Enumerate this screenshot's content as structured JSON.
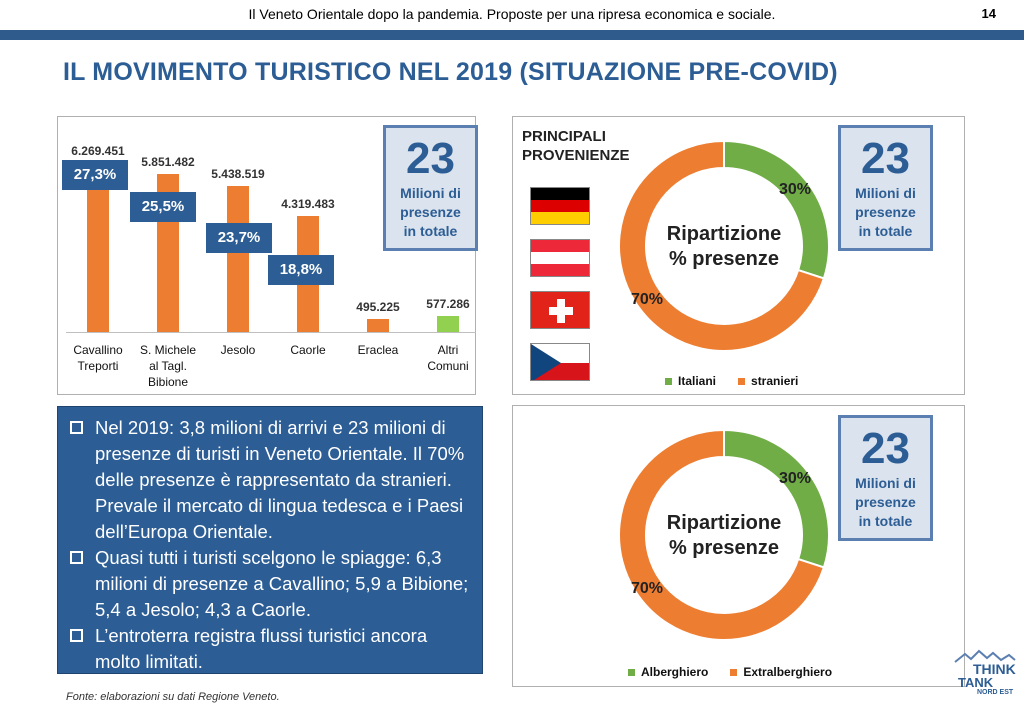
{
  "header": {
    "text": "Il Veneto Orientale dopo la pandemia. Proposte per una ripresa economica e sociale.",
    "page_number": "14"
  },
  "title": "IL MOVIMENTO TURISTICO NEL 2019 (SITUAZIONE PRE-COVID)",
  "stat_box": {
    "number": "23",
    "line1": "Milioni di",
    "line2": "presenze",
    "line3": "in totale"
  },
  "chart_data": [
    {
      "type": "bar",
      "categories": [
        [
          "Cavallino",
          "Treporti"
        ],
        [
          "S. Michele",
          "al Tagl.",
          "Bibione"
        ],
        [
          "Jesolo"
        ],
        [
          "Caorle"
        ],
        [
          "Eraclea"
        ],
        [
          "Altri",
          "Comuni"
        ]
      ],
      "values": [
        6269451,
        5851482,
        5438519,
        4319483,
        495225,
        577286
      ],
      "value_labels": [
        "6.269.451",
        "5.851.482",
        "5.438.519",
        "4.319.483",
        "495.225",
        "577.286"
      ],
      "shares": [
        "27,3%",
        "25,5%",
        "23,7%",
        "18,8%"
      ],
      "bar_colors": [
        "#ed7d31",
        "#ed7d31",
        "#ed7d31",
        "#ed7d31",
        "#ed7d31",
        "#92d050"
      ],
      "ylim": [
        0,
        6500000
      ]
    },
    {
      "type": "pie",
      "title": [
        "PRINCIPALI",
        "PROVENIENZE"
      ],
      "center_label": [
        "Ripartizione",
        "% presenze"
      ],
      "labels": [
        "Italiani",
        "stranieri"
      ],
      "values": [
        30,
        70
      ],
      "value_labels": [
        "30%",
        "70%"
      ],
      "colors": [
        "#70ad47",
        "#ed7d31"
      ],
      "flags": [
        "germany-flag",
        "austria-flag",
        "switzerland-flag",
        "czech-flag"
      ]
    },
    {
      "type": "pie",
      "center_label": [
        "Ripartizione",
        "% presenze"
      ],
      "labels": [
        "Alberghiero",
        "Extralberghiero"
      ],
      "values": [
        30,
        70
      ],
      "value_labels": [
        "30%",
        "70%"
      ],
      "colors": [
        "#70ad47",
        "#ed7d31"
      ]
    }
  ],
  "bullets": [
    "Nel 2019: 3,8 milioni di arrivi e 23 milioni di presenze di turisti in Veneto Orientale. Il 70% delle presenze è rappresentato da stranieri. Prevale il mercato di lingua tedesca e i Paesi dell’Europa Orientale.",
    "Quasi tutti i turisti scelgono le spiagge: 6,3 milioni di presenze a Cavallino; 5,9 a Bibione; 5,4 a Jesolo; 4,3 a Caorle.",
    "L’entroterra registra flussi turistici ancora molto limitati."
  ],
  "footnote": "Fonte: elaborazioni su dati Regione Veneto.",
  "logo": {
    "line1": "THINK",
    "line2": "TANK",
    "line3": "NORD EST"
  }
}
